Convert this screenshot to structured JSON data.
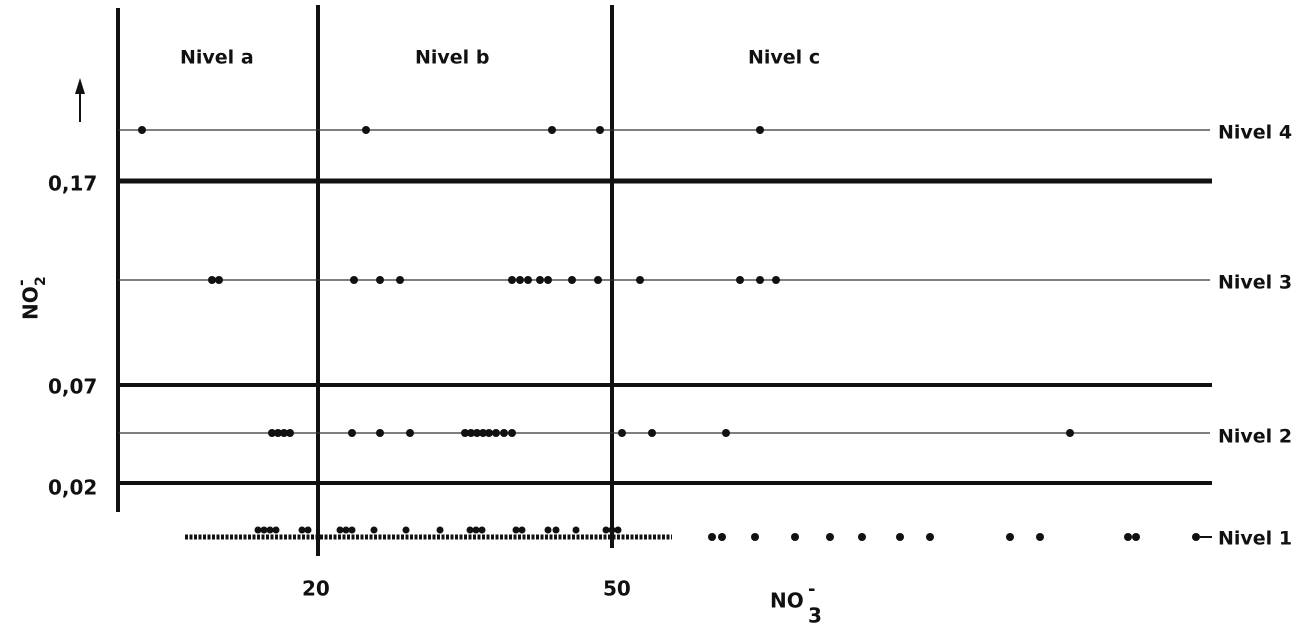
{
  "zones": [
    "Nivel a",
    "Nivel b",
    "Nivel c"
  ],
  "levels": [
    "Nivel 4",
    "Nivel 3",
    "Nivel 2",
    "Nivel 1"
  ],
  "y_thresholds": [
    "0,17",
    "0,07",
    "0,02"
  ],
  "x_markers": [
    "20",
    "50"
  ],
  "y_axis_label": {
    "base": "NO",
    "sub": "2",
    "sup": "-"
  },
  "x_axis_label": {
    "base": "NO",
    "sub": "3",
    "sup": "-"
  }
}
